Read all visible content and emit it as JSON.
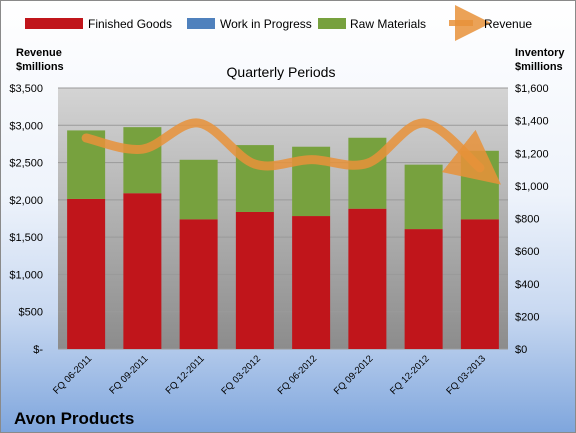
{
  "chart_data": {
    "type": "bar",
    "stacked": true,
    "title": "Quarterly Periods",
    "company": "Avon Products",
    "left_axis_label": [
      "Revenue",
      "$millions"
    ],
    "right_axis_label": [
      "Inventory",
      "$millions"
    ],
    "categories": [
      "FQ 06-2011",
      "FQ 09-2011",
      "FQ 12-2011",
      "FQ 03-2012",
      "FQ 06-2012",
      "FQ 09-2012",
      "FQ 12-2012",
      "FQ 03-2013"
    ],
    "left_ylim": [
      0,
      3500
    ],
    "left_ticks": [
      0,
      500,
      1000,
      1500,
      2000,
      2500,
      3000,
      3500
    ],
    "left_tick_labels": [
      "$-",
      "$500",
      "$1,000",
      "$1,500",
      "$2,000",
      "$2,500",
      "$3,000",
      "$3,500"
    ],
    "right_ylim": [
      0,
      1600
    ],
    "right_ticks": [
      0,
      200,
      400,
      600,
      800,
      1000,
      1200,
      1400,
      1600
    ],
    "right_tick_labels": [
      "$0",
      "$200",
      "$400",
      "$600",
      "$800",
      "$1,000",
      "$1,200",
      "$1,400",
      "$1,600"
    ],
    "legend_position": "top",
    "series": [
      {
        "name": "Finished Goods",
        "axis": "right",
        "color": "#c0151b",
        "values": [
          920,
          955,
          795,
          840,
          815,
          860,
          735,
          795
        ]
      },
      {
        "name": "Work in Progress",
        "axis": "right",
        "color": "#4f81bd",
        "values": [
          0,
          0,
          0,
          0,
          0,
          0,
          0,
          0
        ]
      },
      {
        "name": "Raw Materials",
        "axis": "right",
        "color": "#77a13e",
        "values": [
          420,
          405,
          365,
          410,
          425,
          435,
          395,
          420
        ]
      },
      {
        "name": "Revenue",
        "axis": "left",
        "type": "line",
        "color": "#e8923a",
        "values": [
          2830,
          2680,
          3030,
          2480,
          2540,
          2490,
          3030,
          2430
        ]
      }
    ],
    "grid": true
  }
}
